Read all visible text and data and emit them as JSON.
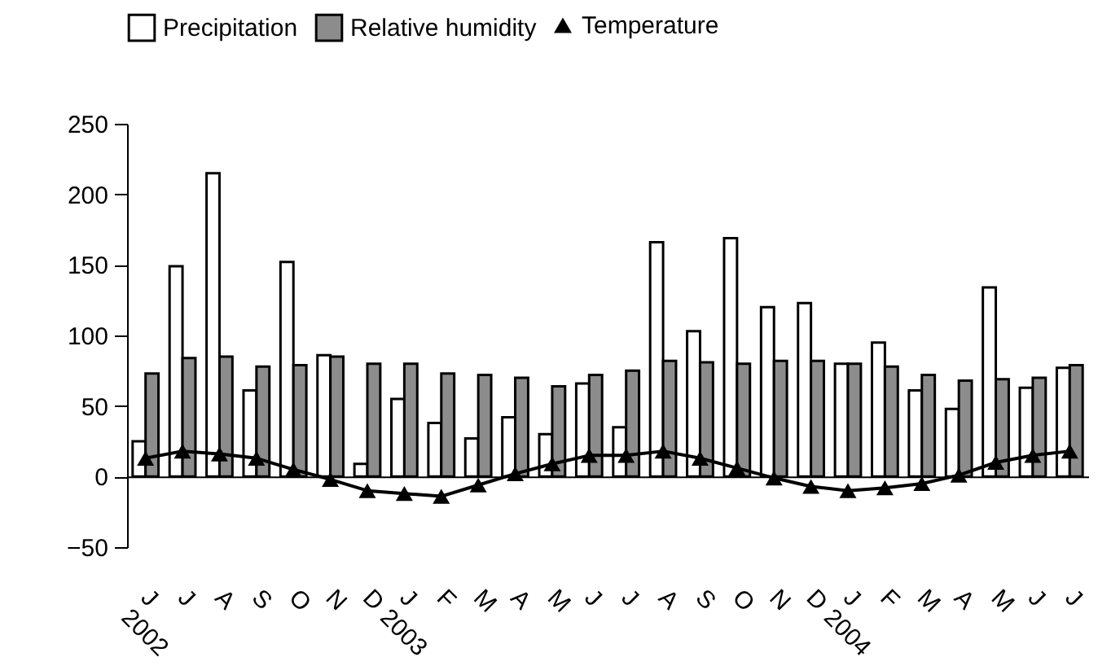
{
  "chart_data": {
    "type": "bar",
    "categories": [
      "J\n2002",
      "J",
      "A",
      "S",
      "O",
      "N",
      "D",
      "J\n2003",
      "F",
      "M",
      "A",
      "M",
      "J",
      "J",
      "A",
      "S",
      "O",
      "N",
      "D",
      "J\n2004",
      "F",
      "M",
      "A",
      "M",
      "J",
      "J"
    ],
    "series": [
      {
        "name": "Precipitation",
        "color": "#ffffff",
        "values": [
          25,
          149,
          215,
          61,
          152,
          86,
          9,
          55,
          38,
          27,
          42,
          30,
          66,
          35,
          166,
          103,
          169,
          120,
          123,
          80,
          95,
          61,
          48,
          134,
          63,
          77
        ]
      },
      {
        "name": "Relative humidity",
        "color": "#8c8c8c",
        "values": [
          73,
          84,
          85,
          78,
          79,
          85,
          80,
          80,
          73,
          72,
          70,
          64,
          72,
          75,
          82,
          81,
          80,
          82,
          82,
          80,
          78,
          72,
          68,
          69,
          70,
          79
        ]
      },
      {
        "name": "Temperature",
        "type": "line",
        "color": "#000000",
        "marker": "triangle",
        "values": [
          13,
          18,
          16,
          13,
          5,
          -2,
          -10,
          -12,
          -14,
          -6,
          2,
          9,
          15,
          15,
          18,
          13,
          6,
          -1,
          -7,
          -10,
          -8,
          -5,
          1,
          10,
          15,
          18
        ]
      }
    ],
    "ylim": [
      -50,
      250
    ],
    "yticks": [
      -50,
      0,
      50,
      100,
      150,
      200,
      250
    ],
    "legend": "top"
  }
}
